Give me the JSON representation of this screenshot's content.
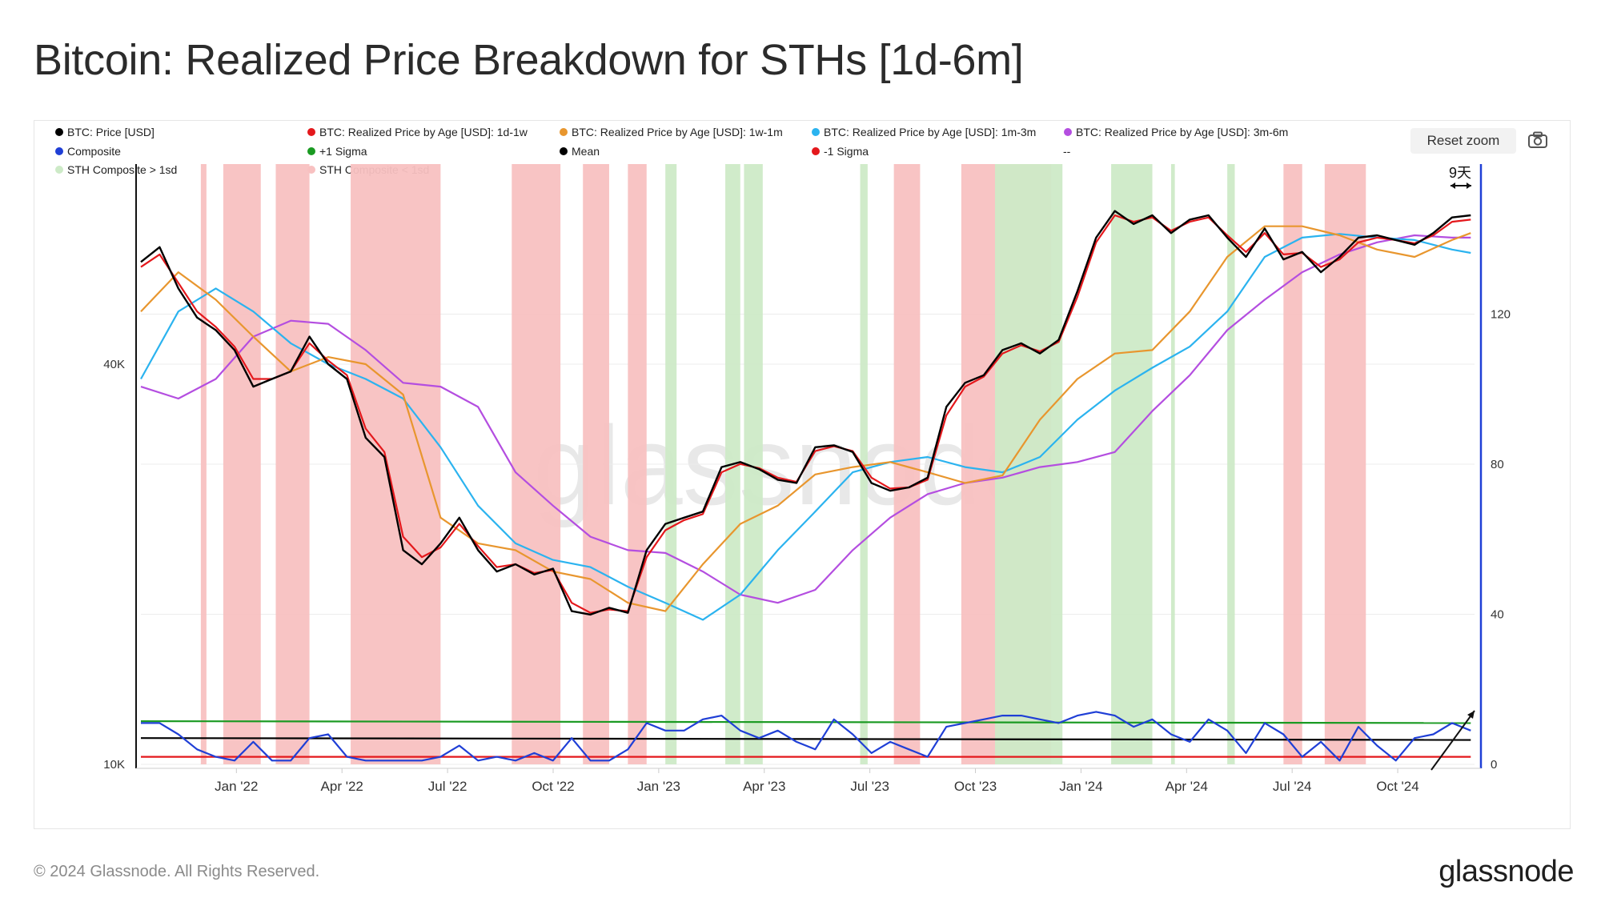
{
  "page": {
    "title": "Bitcoin: Realized Price Breakdown for STHs [1d-6m]",
    "reset_zoom_label": "Reset zoom",
    "camera_icon": "camera-icon",
    "footer": "© 2024 Glassnode. All Rights Reserved.",
    "brand": "glassnode",
    "watermark": "glassnode",
    "annotation": "9天"
  },
  "colors": {
    "price": "#000000",
    "rp_1d_1w": "#e4181c",
    "rp_1w_1m": "#e8962e",
    "rp_1m_3m": "#2bb3ef",
    "rp_3m_6m": "#b44ee0",
    "composite": "#1f3fd6",
    "plus_sigma": "#1a9a22",
    "mean": "#000000",
    "minus_sigma": "#e4181c",
    "band_above": "#cdeac7",
    "band_below": "#f8c1c1",
    "right_axis": "#1f3fd6"
  },
  "legend": [
    {
      "label": "BTC: Price [USD]",
      "color": "#000000"
    },
    {
      "label": "BTC: Realized Price by Age [USD]: 1d-1w",
      "color": "#e4181c"
    },
    {
      "label": "BTC: Realized Price by Age [USD]: 1w-1m",
      "color": "#e8962e"
    },
    {
      "label": "BTC: Realized Price by Age [USD]: 1m-3m",
      "color": "#2bb3ef"
    },
    {
      "label": "BTC: Realized Price by Age [USD]: 3m-6m",
      "color": "#b44ee0"
    },
    {
      "label": "Composite",
      "color": "#1f3fd6"
    },
    {
      "label": "+1 Sigma",
      "color": "#1a9a22"
    },
    {
      "label": "Mean",
      "color": "#000000"
    },
    {
      "label": "-1 Sigma",
      "color": "#e4181c"
    },
    {
      "label": "--",
      "color": ""
    },
    {
      "label": "STH Composite > 1sd",
      "color": "#cdeac7"
    },
    {
      "label": "STH Composite < 1sd",
      "color": "#f8c1c1"
    }
  ],
  "chart_data": {
    "type": "line",
    "title": "Bitcoin: Realized Price Breakdown for STHs [1d-6m]",
    "x_ticks": [
      "Jan '22",
      "Apr '22",
      "Jul '22",
      "Oct '22",
      "Jan '23",
      "Apr '23",
      "Jul '23",
      "Oct '23",
      "Jan '24",
      "Apr '24",
      "Jul '24",
      "Oct '24"
    ],
    "x_range_months": [
      0,
      35.6
    ],
    "left_axis": {
      "scale": "log",
      "range": [
        10000,
        80000
      ],
      "ticks": [
        {
          "v": 10000,
          "label": "10K"
        },
        {
          "v": 40000,
          "label": "40K"
        }
      ]
    },
    "right_axis": {
      "scale": "linear",
      "range": [
        0,
        160
      ],
      "ticks": [
        {
          "v": 0,
          "label": "0"
        },
        {
          "v": 40,
          "label": "40"
        },
        {
          "v": 80,
          "label": "80"
        },
        {
          "v": 120,
          "label": "120"
        }
      ]
    },
    "series": [
      {
        "name": "BTC: Price [USD]",
        "axis": "left",
        "color": "#000000",
        "x": [
          0,
          0.5,
          1,
          1.5,
          2,
          2.5,
          3,
          3.5,
          4,
          4.5,
          5,
          5.5,
          6,
          6.5,
          7,
          7.5,
          8,
          8.5,
          9,
          9.5,
          10,
          10.5,
          11,
          11.5,
          12,
          12.5,
          13,
          13.5,
          14,
          14.5,
          15,
          15.5,
          16,
          16.5,
          17,
          17.5,
          18,
          18.5,
          19,
          19.5,
          20,
          20.5,
          21,
          21.5,
          22,
          22.5,
          23,
          23.5,
          24,
          24.5,
          25,
          25.5,
          26,
          26.5,
          27,
          27.5,
          28,
          28.5,
          29,
          29.5,
          30,
          30.5,
          31,
          31.5,
          32,
          32.5,
          33,
          33.5,
          34,
          34.5,
          35,
          35.5
        ],
        "y": [
          57000,
          60000,
          52000,
          47000,
          45000,
          42000,
          37000,
          38000,
          39000,
          44000,
          40000,
          38000,
          31000,
          29000,
          21000,
          20000,
          21500,
          23500,
          21000,
          19500,
          20000,
          19300,
          19700,
          17000,
          16800,
          17200,
          16900,
          21000,
          23000,
          23500,
          24000,
          28000,
          28500,
          27800,
          26800,
          26500,
          30000,
          30200,
          29500,
          26500,
          25800,
          26100,
          27000,
          34500,
          37500,
          38500,
          42000,
          43000,
          41500,
          43500,
          51500,
          62000,
          68000,
          65000,
          67000,
          63000,
          66000,
          67000,
          62000,
          58000,
          64000,
          57500,
          59000,
          55000,
          58000,
          62000,
          62500,
          61500,
          60500,
          63000,
          66500,
          67000
        ]
      },
      {
        "name": "BTC: Realized Price by Age [USD]: 1d-1w",
        "axis": "left",
        "color": "#e4181c",
        "x": [
          0,
          0.5,
          1,
          1.5,
          2,
          2.5,
          3,
          3.5,
          4,
          4.5,
          5,
          5.5,
          6,
          6.5,
          7,
          7.5,
          8,
          8.5,
          9,
          9.5,
          10,
          10.5,
          11,
          11.5,
          12,
          12.5,
          13,
          13.5,
          14,
          14.5,
          15,
          15.5,
          16,
          16.5,
          17,
          17.5,
          18,
          18.5,
          19,
          19.5,
          20,
          20.5,
          21,
          21.5,
          22,
          22.5,
          23,
          23.5,
          24,
          24.5,
          25,
          25.5,
          26,
          26.5,
          27,
          27.5,
          28,
          28.5,
          29,
          29.5,
          30,
          30.5,
          31,
          31.5,
          32,
          32.5,
          33,
          33.5,
          34,
          34.5,
          35,
          35.5
        ],
        "y": [
          56000,
          58500,
          53000,
          48000,
          45500,
          42500,
          38000,
          38000,
          39000,
          43000,
          40500,
          38500,
          32000,
          29500,
          22000,
          20500,
          21200,
          23000,
          21300,
          19800,
          20000,
          19400,
          19600,
          17500,
          16900,
          17100,
          17000,
          20500,
          22500,
          23300,
          23800,
          27500,
          28300,
          27900,
          27000,
          26600,
          29600,
          30100,
          29600,
          27000,
          26000,
          26100,
          26800,
          33500,
          37000,
          38300,
          41500,
          42700,
          41800,
          43200,
          50500,
          61000,
          67000,
          65500,
          66500,
          63500,
          65500,
          66500,
          62500,
          59000,
          63000,
          58500,
          58800,
          56000,
          57500,
          61000,
          62000,
          61500,
          60800,
          62500,
          65500,
          66000
        ]
      },
      {
        "name": "BTC: Realized Price by Age [USD]: 1w-1m",
        "axis": "left",
        "color": "#e8962e",
        "x": [
          0,
          1,
          2,
          3,
          4,
          5,
          6,
          7,
          8,
          9,
          10,
          11,
          12,
          13,
          14,
          15,
          16,
          17,
          18,
          19,
          20,
          21,
          22,
          23,
          24,
          25,
          26,
          27,
          28,
          29,
          30,
          31,
          32,
          33,
          34,
          35,
          35.5
        ],
        "y": [
          48000,
          55000,
          50000,
          44000,
          39000,
          41000,
          40000,
          36000,
          23500,
          21500,
          21000,
          19500,
          19000,
          17500,
          17000,
          20000,
          23000,
          24500,
          27300,
          28000,
          28500,
          27500,
          26500,
          27200,
          33000,
          38000,
          41500,
          42000,
          48000,
          58000,
          64500,
          64500,
          62500,
          59500,
          58000,
          61500,
          63000
        ]
      },
      {
        "name": "BTC: Realized Price by Age [USD]: 1m-3m",
        "axis": "left",
        "color": "#2bb3ef",
        "x": [
          0,
          1,
          2,
          3,
          4,
          5,
          6,
          7,
          8,
          9,
          10,
          11,
          12,
          13,
          14,
          15,
          16,
          17,
          18,
          19,
          20,
          21,
          22,
          23,
          24,
          25,
          26,
          27,
          28,
          29,
          30,
          31,
          32,
          33,
          34,
          35,
          35.5
        ],
        "y": [
          38000,
          48000,
          52000,
          48000,
          43000,
          40000,
          38000,
          35500,
          30000,
          24500,
          21500,
          20300,
          19800,
          18500,
          17500,
          16500,
          18000,
          21000,
          24000,
          27500,
          28500,
          29000,
          28000,
          27500,
          29000,
          33000,
          36500,
          39500,
          42500,
          48000,
          58000,
          62000,
          62800,
          62000,
          61500,
          59500,
          58800
        ]
      },
      {
        "name": "BTC: Realized Price by Age [USD]: 3m-6m",
        "axis": "left",
        "color": "#b44ee0",
        "x": [
          0,
          1,
          2,
          3,
          4,
          5,
          6,
          7,
          8,
          9,
          10,
          11,
          12,
          13,
          14,
          15,
          16,
          17,
          18,
          19,
          20,
          21,
          22,
          23,
          24,
          25,
          26,
          27,
          28,
          29,
          30,
          31,
          32,
          33,
          34,
          35,
          35.5
        ],
        "y": [
          37000,
          35500,
          38000,
          44000,
          46500,
          46000,
          42000,
          37500,
          37000,
          34500,
          27500,
          24500,
          22000,
          21000,
          20800,
          19500,
          18000,
          17500,
          18300,
          21000,
          23500,
          25500,
          26500,
          27000,
          28000,
          28500,
          29500,
          34000,
          38500,
          45000,
          50000,
          55000,
          58500,
          61000,
          62500,
          62000,
          62000
        ]
      },
      {
        "name": "Composite",
        "axis": "right",
        "color": "#1f3fd6",
        "x": [
          0,
          0.5,
          1,
          1.5,
          2,
          2.5,
          3,
          3.5,
          4,
          4.5,
          5,
          5.5,
          6,
          6.5,
          7,
          7.5,
          8,
          8.5,
          9,
          9.5,
          10,
          10.5,
          11,
          11.5,
          12,
          12.5,
          13,
          13.5,
          14,
          14.5,
          15,
          15.5,
          16,
          16.5,
          17,
          17.5,
          18,
          18.5,
          19,
          19.5,
          20,
          20.5,
          21,
          21.5,
          22,
          22.5,
          23,
          23.5,
          24,
          24.5,
          25,
          25.5,
          26,
          26.5,
          27,
          27.5,
          28,
          28.5,
          29,
          29.5,
          30,
          30.5,
          31,
          31.5,
          32,
          32.5,
          33,
          33.5,
          34,
          34.5,
          35,
          35.5
        ],
        "y": [
          11,
          11,
          8,
          4,
          2,
          1,
          6,
          1,
          1,
          7,
          8,
          2,
          1,
          1,
          1,
          1,
          2,
          5,
          1,
          2,
          1,
          3,
          1,
          7,
          1,
          1,
          4,
          11,
          9,
          9,
          12,
          13,
          9,
          7,
          9,
          6,
          4,
          12,
          8,
          3,
          6,
          4,
          2,
          10,
          11,
          12,
          13,
          13,
          12,
          11,
          13,
          14,
          13,
          10,
          12,
          8,
          6,
          12,
          9,
          3,
          11,
          8,
          2,
          6,
          1,
          10,
          5,
          1,
          7,
          8,
          11,
          9
        ]
      },
      {
        "name": "+1 Sigma",
        "axis": "right",
        "color": "#1a9a22",
        "x": [
          0,
          35.5
        ],
        "y": [
          11.5,
          11
        ]
      },
      {
        "name": "Mean",
        "axis": "right",
        "color": "#000000",
        "x": [
          0,
          35.5
        ],
        "y": [
          7,
          6.5
        ]
      },
      {
        "name": "-1 Sigma",
        "axis": "right",
        "color": "#e4181c",
        "x": [
          0,
          35.5
        ],
        "y": [
          2,
          2
        ]
      }
    ],
    "bands_below": [
      [
        1.6,
        1.75
      ],
      [
        2.2,
        3.2
      ],
      [
        3.6,
        4.5
      ],
      [
        5.6,
        8.0
      ],
      [
        9.9,
        11.2
      ],
      [
        11.8,
        12.5
      ],
      [
        13.0,
        13.5
      ],
      [
        20.1,
        20.8
      ],
      [
        21.9,
        24.3
      ],
      [
        30.5,
        31.0
      ],
      [
        31.6,
        32.7
      ]
    ],
    "bands_above": [
      [
        14.0,
        14.3
      ],
      [
        15.6,
        16.0
      ],
      [
        16.1,
        16.6
      ],
      [
        19.2,
        19.4
      ],
      [
        22.8,
        24.6
      ],
      [
        25.9,
        27.0
      ],
      [
        27.5,
        27.6
      ],
      [
        29.0,
        29.2
      ]
    ]
  }
}
